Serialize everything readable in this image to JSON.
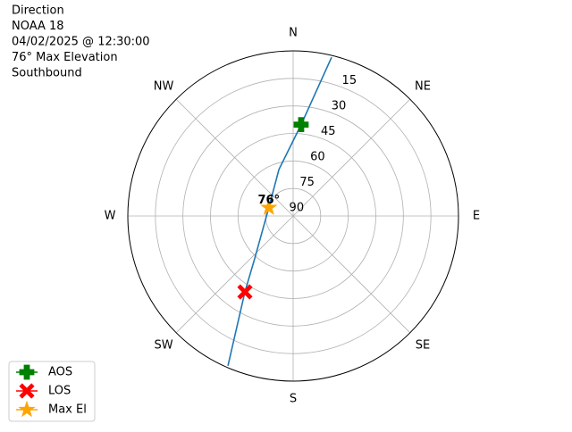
{
  "chart_data": {
    "type": "polar",
    "title": [
      "Direction",
      "NOAA 18",
      "04/02/2025 @ 12:30:00",
      "76° Max Elevation",
      "Southbound"
    ],
    "rlim": [
      90,
      0
    ],
    "rticks": [
      15,
      30,
      45,
      60,
      75,
      90
    ],
    "theta_ticks": [
      {
        "value": 0,
        "label": "N"
      },
      {
        "value": 45,
        "label": "NE"
      },
      {
        "value": 90,
        "label": "E"
      },
      {
        "value": 135,
        "label": "SE"
      },
      {
        "value": 180,
        "label": "S"
      },
      {
        "value": 225,
        "label": "SW"
      },
      {
        "value": 270,
        "label": "W"
      },
      {
        "value": 315,
        "label": "NW"
      }
    ],
    "grid": true,
    "track": {
      "color": "#1f77b4",
      "az": [
        13.6,
        5,
        343,
        289,
        222,
        212.4,
        203.5
      ],
      "el": [
        1,
        40,
        63.5,
        76,
        58.7,
        41,
        1
      ]
    },
    "series": [
      {
        "name": "AOS",
        "color": "green",
        "marker": "plus",
        "az": [
          5
        ],
        "el": [
          40
        ]
      },
      {
        "name": "LOS",
        "color": "red",
        "marker": "x",
        "az": [
          212.4
        ],
        "el": [
          41
        ]
      },
      {
        "name": "Max El",
        "color": "orange",
        "marker": "star",
        "az": [
          289
        ],
        "el": [
          76
        ]
      }
    ],
    "annotation": {
      "text": "76°",
      "az": 289,
      "el": 76
    },
    "legend": "lower left"
  }
}
